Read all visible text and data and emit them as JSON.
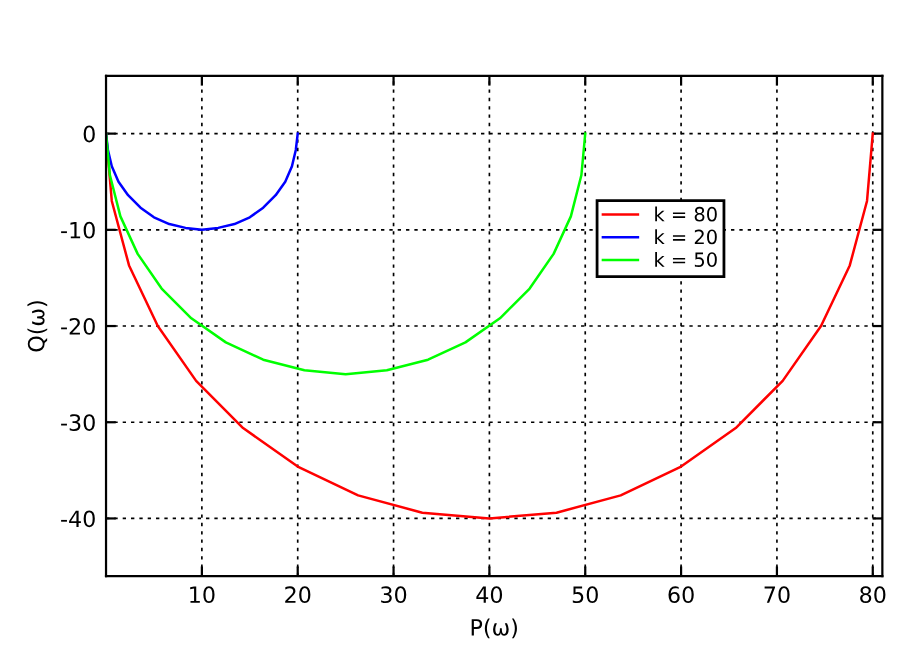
{
  "chart_data": {
    "type": "line",
    "xlabel": "P(ω)",
    "ylabel": "Q(ω)",
    "xlim": [
      0,
      81
    ],
    "ylim": [
      -46,
      6
    ],
    "xticks": [
      10,
      20,
      30,
      40,
      50,
      60,
      70,
      80
    ],
    "yticks": [
      -40,
      -30,
      -20,
      -10,
      0
    ],
    "grid": true,
    "legend": "right",
    "marker": "none",
    "line_style": "solid",
    "series": [
      {
        "name": "k = 80",
        "color": "#ff0000",
        "x": [
          80,
          79.4,
          77.6,
          74.6,
          70.6,
          65.7,
          60,
          53.7,
          47.0,
          40,
          33.0,
          26.3,
          20,
          14.3,
          9.4,
          5.4,
          2.4,
          0.6,
          0
        ],
        "values": [
          0,
          -7.0,
          -13.7,
          -20,
          -25.7,
          -30.6,
          -34.6,
          -37.6,
          -39.4,
          -40,
          -39.4,
          -37.6,
          -34.6,
          -30.6,
          -25.7,
          -20,
          -13.7,
          -7.0,
          0
        ]
      },
      {
        "name": "k = 20",
        "color": "#0000ff",
        "x": [
          20,
          19.8,
          19.4,
          18.7,
          17.7,
          16.4,
          15,
          13.4,
          11.7,
          10,
          8.3,
          6.6,
          5,
          3.6,
          2.3,
          1.3,
          0.6,
          0.2,
          0
        ],
        "values": [
          0,
          -1.7,
          -3.4,
          -5,
          -6.4,
          -7.7,
          -8.7,
          -9.4,
          -9.8,
          -10,
          -9.8,
          -9.4,
          -8.7,
          -7.7,
          -6.4,
          -5,
          -3.4,
          -1.7,
          0
        ]
      },
      {
        "name": "k = 50",
        "color": "#00ff00",
        "x": [
          50,
          49.6,
          48.5,
          46.7,
          44.2,
          41.1,
          37.5,
          33.6,
          29.3,
          25,
          20.7,
          16.4,
          12.5,
          8.9,
          5.8,
          3.3,
          1.5,
          0.4,
          0
        ],
        "values": [
          0,
          -4.3,
          -8.6,
          -12.5,
          -16.1,
          -19.2,
          -21.7,
          -23.5,
          -24.6,
          -25,
          -24.6,
          -23.5,
          -21.7,
          -19.2,
          -16.1,
          -12.5,
          -8.6,
          -4.3,
          0
        ]
      }
    ]
  }
}
